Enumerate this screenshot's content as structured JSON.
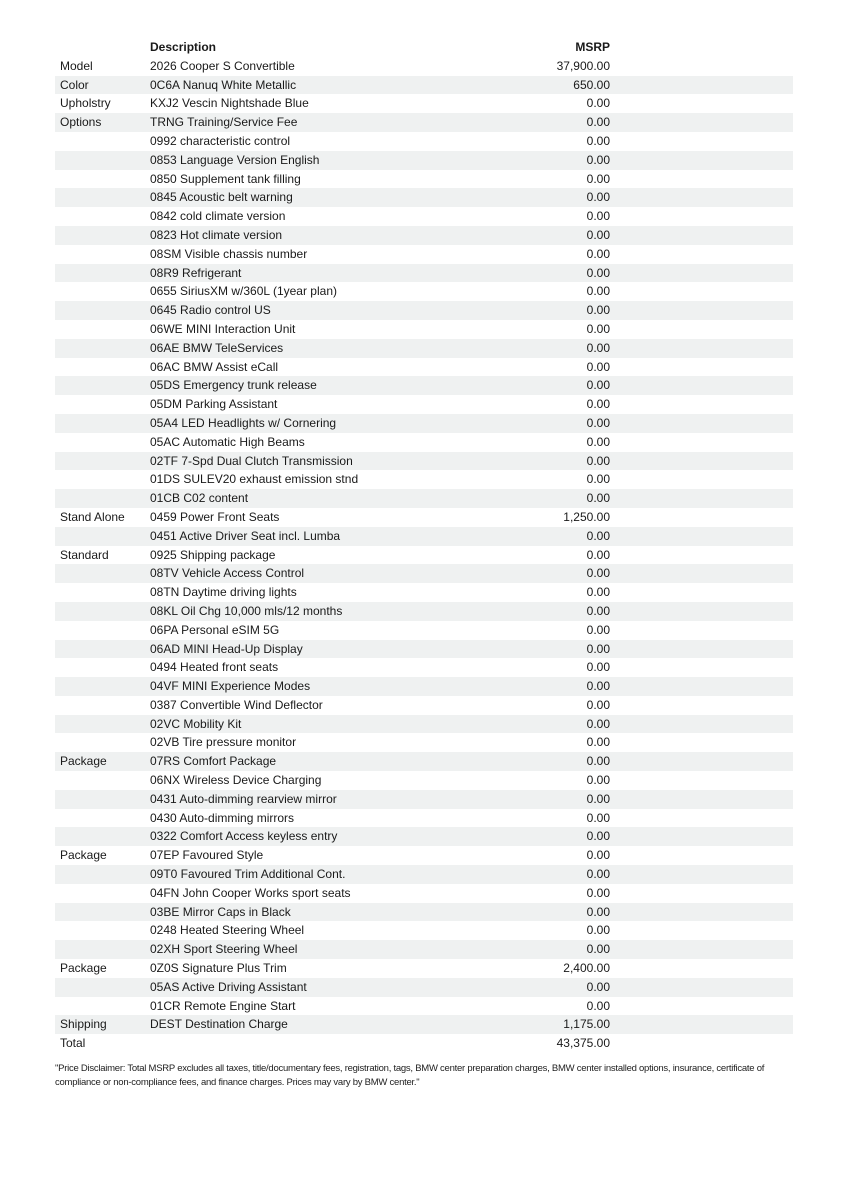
{
  "header": {
    "description_label": "Description",
    "msrp_label": "MSRP"
  },
  "rows": [
    {
      "category": "Model",
      "description": "2026 Cooper S Convertible",
      "msrp": "37,900.00"
    },
    {
      "category": "Color",
      "description": "0C6A Nanuq White Metallic",
      "msrp": "650.00"
    },
    {
      "category": "Upholstry",
      "description": "KXJ2 Vescin Nightshade Blue",
      "msrp": "0.00"
    },
    {
      "category": "Options",
      "description": "TRNG Training/Service Fee",
      "msrp": "0.00"
    },
    {
      "category": "",
      "description": "0992 characteristic control",
      "msrp": "0.00"
    },
    {
      "category": "",
      "description": "0853 Language Version English",
      "msrp": "0.00"
    },
    {
      "category": "",
      "description": "0850 Supplement tank filling",
      "msrp": "0.00"
    },
    {
      "category": "",
      "description": "0845 Acoustic belt warning",
      "msrp": "0.00"
    },
    {
      "category": "",
      "description": "0842 cold climate version",
      "msrp": "0.00"
    },
    {
      "category": "",
      "description": "0823 Hot climate version",
      "msrp": "0.00"
    },
    {
      "category": "",
      "description": "08SM Visible chassis number",
      "msrp": "0.00"
    },
    {
      "category": "",
      "description": "08R9 Refrigerant",
      "msrp": "0.00"
    },
    {
      "category": "",
      "description": "0655 SiriusXM w/360L (1year plan)",
      "msrp": "0.00"
    },
    {
      "category": "",
      "description": "0645 Radio control US",
      "msrp": "0.00"
    },
    {
      "category": "",
      "description": "06WE MINI Interaction Unit",
      "msrp": "0.00"
    },
    {
      "category": "",
      "description": "06AE BMW TeleServices",
      "msrp": "0.00"
    },
    {
      "category": "",
      "description": "06AC BMW Assist eCall",
      "msrp": "0.00"
    },
    {
      "category": "",
      "description": "05DS Emergency trunk release",
      "msrp": "0.00"
    },
    {
      "category": "",
      "description": "05DM Parking Assistant",
      "msrp": "0.00"
    },
    {
      "category": "",
      "description": "05A4 LED Headlights w/ Cornering",
      "msrp": "0.00"
    },
    {
      "category": "",
      "description": "05AC Automatic High Beams",
      "msrp": "0.00"
    },
    {
      "category": "",
      "description": "02TF 7-Spd Dual Clutch Transmission",
      "msrp": "0.00"
    },
    {
      "category": "",
      "description": "01DS SULEV20 exhaust emission stnd",
      "msrp": "0.00"
    },
    {
      "category": "",
      "description": "01CB C02 content",
      "msrp": "0.00"
    },
    {
      "category": "Stand Alone",
      "description": "0459 Power Front Seats",
      "msrp": "1,250.00"
    },
    {
      "category": "",
      "description": "0451 Active Driver Seat incl. Lumba",
      "msrp": "0.00"
    },
    {
      "category": "Standard",
      "description": "0925 Shipping package",
      "msrp": "0.00"
    },
    {
      "category": "",
      "description": "08TV Vehicle Access Control",
      "msrp": "0.00"
    },
    {
      "category": "",
      "description": "08TN Daytime driving lights",
      "msrp": "0.00"
    },
    {
      "category": "",
      "description": "08KL Oil Chg 10,000 mls/12 months",
      "msrp": "0.00"
    },
    {
      "category": "",
      "description": "06PA Personal eSIM 5G",
      "msrp": "0.00"
    },
    {
      "category": "",
      "description": "06AD MINI Head-Up Display",
      "msrp": "0.00"
    },
    {
      "category": "",
      "description": "0494 Heated front seats",
      "msrp": "0.00"
    },
    {
      "category": "",
      "description": "04VF MINI Experience Modes",
      "msrp": "0.00"
    },
    {
      "category": "",
      "description": "0387 Convertible Wind Deflector",
      "msrp": "0.00"
    },
    {
      "category": "",
      "description": "02VC Mobility Kit",
      "msrp": "0.00"
    },
    {
      "category": "",
      "description": "02VB Tire pressure monitor",
      "msrp": "0.00"
    },
    {
      "category": "Package",
      "description": "07RS Comfort Package",
      "msrp": "0.00"
    },
    {
      "category": "",
      "description": "06NX Wireless Device Charging",
      "msrp": "0.00"
    },
    {
      "category": "",
      "description": "0431 Auto-dimming rearview mirror",
      "msrp": "0.00"
    },
    {
      "category": "",
      "description": "0430 Auto-dimming mirrors",
      "msrp": "0.00"
    },
    {
      "category": "",
      "description": "0322 Comfort Access keyless entry",
      "msrp": "0.00"
    },
    {
      "category": "Package",
      "description": "07EP Favoured Style",
      "msrp": "0.00"
    },
    {
      "category": "",
      "description": "09T0 Favoured Trim Additional Cont.",
      "msrp": "0.00"
    },
    {
      "category": "",
      "description": "04FN John Cooper Works sport seats",
      "msrp": "0.00"
    },
    {
      "category": "",
      "description": "03BE Mirror Caps in Black",
      "msrp": "0.00"
    },
    {
      "category": "",
      "description": "0248 Heated Steering Wheel",
      "msrp": "0.00"
    },
    {
      "category": "",
      "description": "02XH Sport Steering Wheel",
      "msrp": "0.00"
    },
    {
      "category": "Package",
      "description": "0Z0S Signature Plus Trim",
      "msrp": "2,400.00"
    },
    {
      "category": "",
      "description": "05AS Active Driving Assistant",
      "msrp": "0.00"
    },
    {
      "category": "",
      "description": "01CR Remote Engine Start",
      "msrp": "0.00"
    },
    {
      "category": "Shipping",
      "description": "DEST Destination Charge",
      "msrp": "1,175.00"
    },
    {
      "category": "Total",
      "description": "",
      "msrp": "43,375.00"
    }
  ],
  "disclaimer": "\"Price Disclaimer: Total MSRP excludes all taxes, title/documentary fees, registration, tags, BMW center preparation charges, BMW center installed options, insurance, certificate of compliance or non-compliance fees, and finance charges. Prices may vary by BMW center.\"",
  "colors": {
    "stripe": "#eff1f1",
    "text": "#1a1a1a"
  }
}
